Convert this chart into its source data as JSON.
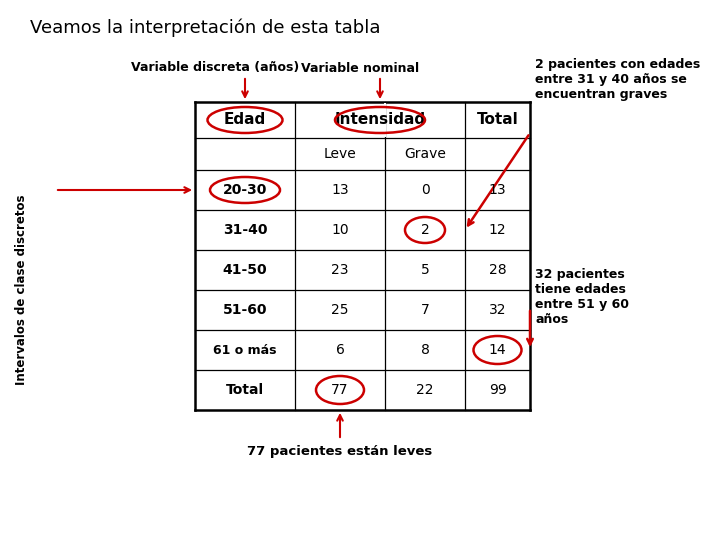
{
  "title": "Veamos la interpretación de esta tabla",
  "bg_color": "#ffffff",
  "rows": [
    [
      "20-30",
      "13",
      "0",
      "13"
    ],
    [
      "31-40",
      "10",
      "2",
      "12"
    ],
    [
      "41-50",
      "23",
      "5",
      "28"
    ],
    [
      "51-60",
      "25",
      "7",
      "32"
    ],
    [
      "61 o más",
      "6",
      "8",
      "14"
    ],
    [
      "Total",
      "77",
      "22",
      "99"
    ]
  ],
  "label_variable_discreta": "Variable discreta (años)",
  "label_variable_nominal": "Variable nominal",
  "label_intervalos": "Intervalos de clase discretos",
  "annotation1_text": "2 pacientes con edades\nentre 31 y 40 años se\nencuentran graves",
  "annotation2_text": "32 pacientes\ntiene edades\nentre 51 y 60\naños",
  "annotation3_text": "77 pacientes están leves",
  "red_color": "#cc0000",
  "text_color": "#000000"
}
